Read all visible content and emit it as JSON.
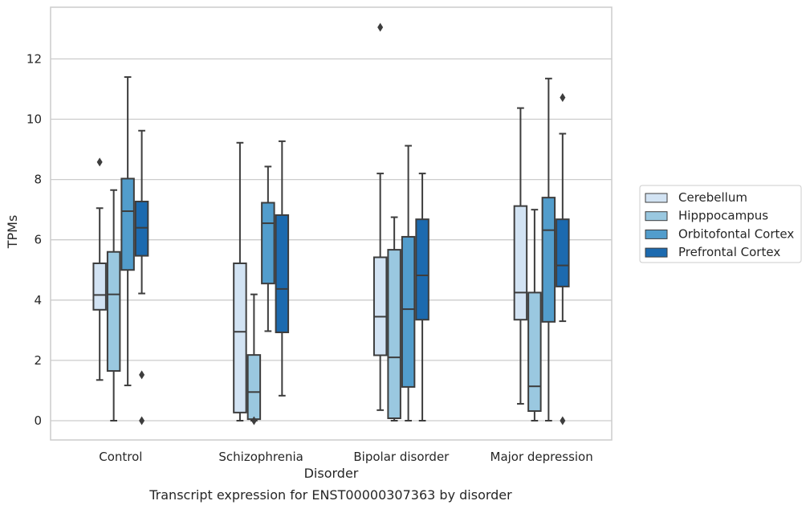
{
  "chart_data": {
    "type": "box",
    "xlabel": "Disorder",
    "ylabel": "TPMs",
    "caption": "Transcript expression for ENST00000307363 by disorder",
    "ylim": [
      -0.65,
      13.7
    ],
    "yticks": [
      "0",
      "2",
      "4",
      "6",
      "8",
      "10",
      "12"
    ],
    "grid": "horizontal",
    "legend_position": "right",
    "categories": [
      "Control",
      "Schizophrenia",
      "Bipolar disorder",
      "Major depression"
    ],
    "series": [
      {
        "name": "Cerebellum",
        "color": "#d2e3f3",
        "boxes": [
          {
            "whisker_low": 1.35,
            "q1": 3.68,
            "median": 4.17,
            "q3": 5.22,
            "whisker_high": 7.05,
            "outliers": [
              8.58
            ]
          },
          {
            "whisker_low": 0.0,
            "q1": 0.27,
            "median": 2.95,
            "q3": 5.22,
            "whisker_high": 9.22,
            "outliers": []
          },
          {
            "whisker_low": 0.35,
            "q1": 2.17,
            "median": 3.45,
            "q3": 5.42,
            "whisker_high": 8.2,
            "outliers": [
              13.05
            ]
          },
          {
            "whisker_low": 0.56,
            "q1": 3.35,
            "median": 4.25,
            "q3": 7.12,
            "whisker_high": 10.37,
            "outliers": []
          }
        ]
      },
      {
        "name": "Hipppocampus",
        "color": "#9ac8e0",
        "boxes": [
          {
            "whisker_low": 0.0,
            "q1": 1.65,
            "median": 4.19,
            "q3": 5.6,
            "whisker_high": 7.65,
            "outliers": []
          },
          {
            "whisker_low": 0.0,
            "q1": 0.05,
            "median": 0.95,
            "q3": 2.18,
            "whisker_high": 4.19,
            "outliers": [
              0.0
            ]
          },
          {
            "whisker_low": 0.0,
            "q1": 0.08,
            "median": 2.1,
            "q3": 5.67,
            "whisker_high": 6.75,
            "outliers": []
          },
          {
            "whisker_low": 0.0,
            "q1": 0.32,
            "median": 1.14,
            "q3": 4.25,
            "whisker_high": 7.0,
            "outliers": []
          }
        ]
      },
      {
        "name": "Orbitofontal Cortex",
        "color": "#529dcc",
        "boxes": [
          {
            "whisker_low": 1.17,
            "q1": 5.0,
            "median": 6.95,
            "q3": 8.03,
            "whisker_high": 11.4,
            "outliers": []
          },
          {
            "whisker_low": 2.97,
            "q1": 4.55,
            "median": 6.55,
            "q3": 7.23,
            "whisker_high": 8.43,
            "outliers": []
          },
          {
            "whisker_low": 0.0,
            "q1": 1.12,
            "median": 3.7,
            "q3": 6.1,
            "whisker_high": 9.12,
            "outliers": []
          },
          {
            "whisker_low": 0.0,
            "q1": 3.28,
            "median": 6.32,
            "q3": 7.4,
            "whisker_high": 11.35,
            "outliers": []
          }
        ]
      },
      {
        "name": "Prefrontal Cortex",
        "color": "#1c6aaf",
        "boxes": [
          {
            "whisker_low": 4.22,
            "q1": 5.47,
            "median": 6.4,
            "q3": 7.27,
            "whisker_high": 9.62,
            "outliers": [
              1.52,
              0.0
            ]
          },
          {
            "whisker_low": 0.83,
            "q1": 2.93,
            "median": 4.37,
            "q3": 6.82,
            "whisker_high": 9.27,
            "outliers": []
          },
          {
            "whisker_low": 0.0,
            "q1": 3.35,
            "median": 4.82,
            "q3": 6.68,
            "whisker_high": 8.2,
            "outliers": []
          },
          {
            "whisker_low": 3.3,
            "q1": 4.45,
            "median": 5.15,
            "q3": 6.68,
            "whisker_high": 9.52,
            "outliers": [
              10.72,
              0.0
            ]
          }
        ]
      }
    ]
  }
}
